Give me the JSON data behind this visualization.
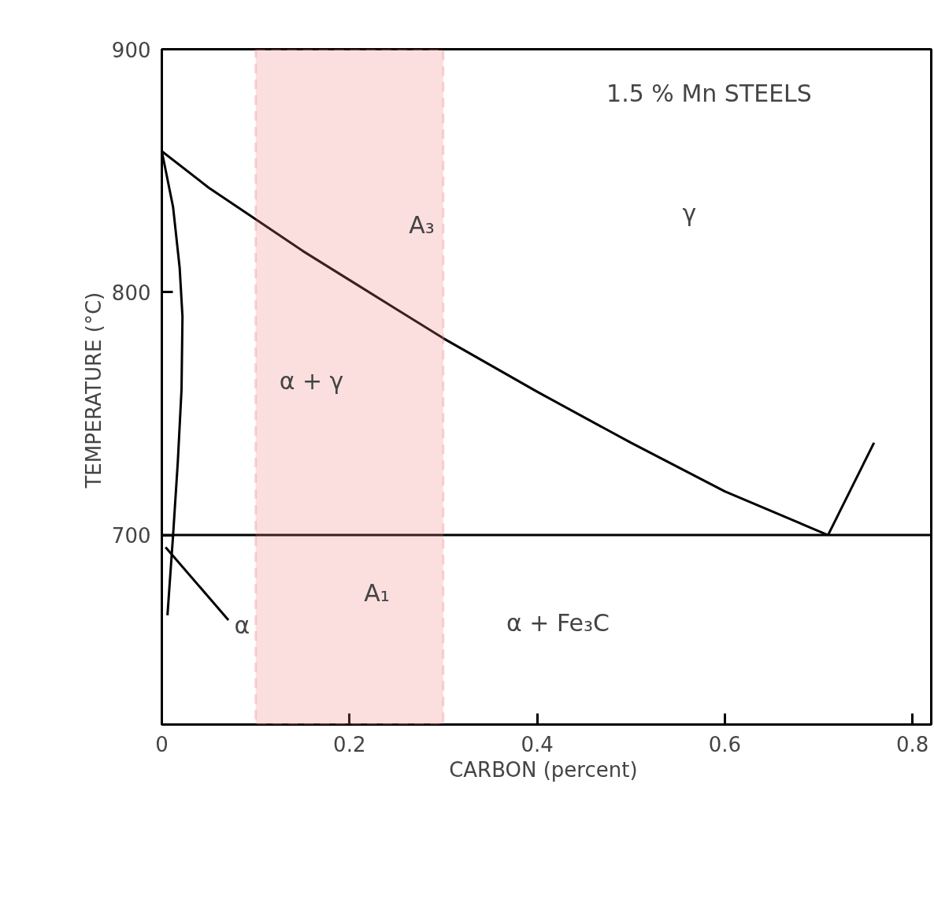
{
  "chart_data": {
    "type": "line",
    "xlabel": "CARBON  (percent)",
    "ylabel": "TEMPERATURE  (°C)",
    "xlim": [
      0,
      0.82
    ],
    "ylim": [
      622,
      900
    ],
    "xticks": [
      0,
      0.2,
      0.4,
      0.6,
      0.8
    ],
    "yticks": [
      700,
      800,
      900
    ],
    "grid": false,
    "line_style": "solid",
    "marker": "none",
    "series": [
      {
        "color": "#000000",
        "x": [
          0,
          0.05,
          0.1,
          0.15,
          0.2,
          0.3,
          0.4,
          0.5,
          0.6,
          0.71
        ],
        "values": [
          858,
          843,
          830,
          817,
          805,
          781,
          759,
          738,
          718,
          700
        ]
      },
      {
        "color": "#000000",
        "x": [
          0.71,
          0.759
        ],
        "values": [
          700,
          738
        ]
      },
      {
        "color": "#000000",
        "x": [
          0,
          0.82
        ],
        "values": [
          700,
          700
        ]
      },
      {
        "color": "#000000",
        "x": [
          0,
          0.012,
          0.019,
          0.022,
          0.021,
          0.017,
          0.012,
          0.006
        ],
        "values": [
          858,
          835,
          810,
          790,
          760,
          730,
          700,
          667
        ]
      },
      {
        "color": "#000000",
        "x": [
          0.004,
          0.071
        ],
        "values": [
          695,
          665
        ]
      }
    ],
    "bands": [
      {
        "axis": "x",
        "from": 0.1,
        "to": 0.3,
        "color": "#f08080"
      }
    ],
    "annotations": [
      "1.5 % Mn STEELS",
      "γ",
      "α + γ",
      "α + Fe₃C",
      "α",
      "A₃",
      "A₁"
    ]
  }
}
